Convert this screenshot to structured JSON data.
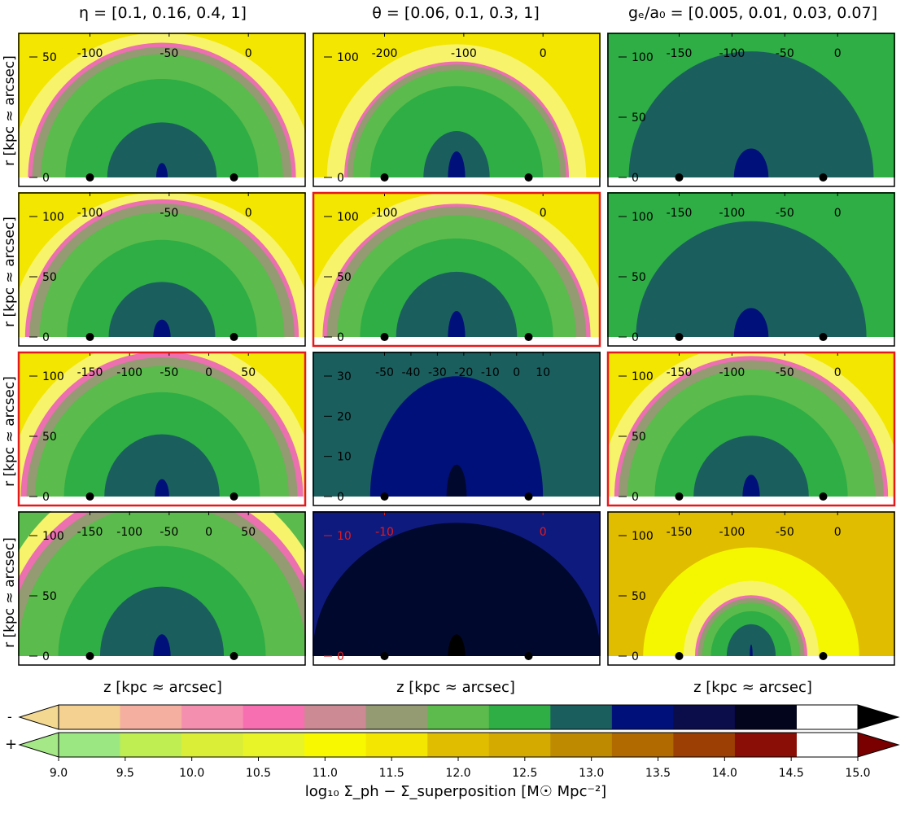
{
  "chart_data": {
    "type": "heatmap",
    "column_titles": [
      "η = [0.1,  0.16,  0.4,  1]",
      "θ = [0.06,  0.1,  0.3,  1]",
      "gₑ/a₀ = [0.005,  0.01,  0.03,  0.07]"
    ],
    "ylabel": "r [kpc ≈ arcsec]",
    "xlabel": "z [kpc ≈ arcsec]",
    "colors": {
      "teal": "#1b5e5e",
      "green": "#2eae45",
      "lightgreen": "#5bbb4c",
      "olive": "#949a72",
      "pink": "#ec6fb0",
      "yellow": "#f3e600",
      "paleyellow": "#f7f36b",
      "gold": "#e1bd00",
      "navy": "#00107a",
      "darknavy": "#00082e",
      "midnavy": "#0f1a7e",
      "lime": "#f5f700",
      "frame_highlight": "#e31a1c"
    },
    "panels": [
      {
        "row": 0,
        "col": 0,
        "xticks": [
          "-100",
          "-50",
          "0"
        ],
        "yticks": [
          "0",
          "50"
        ],
        "highlight": false,
        "bg": "yellow",
        "layers": [
          [
            "paleyellow",
            1.05,
            1.0
          ],
          [
            "pink",
            0.93,
            0.93
          ],
          [
            "olive",
            0.9,
            0.9
          ],
          [
            "lightgreen",
            0.84,
            0.85
          ],
          [
            "green",
            0.67,
            0.68
          ],
          [
            "teal",
            0.38,
            0.38
          ],
          [
            "navy",
            0.04,
            0.1
          ]
        ]
      },
      {
        "row": 0,
        "col": 1,
        "xticks": [
          "-200",
          "-100",
          "0"
        ],
        "yticks": [
          "0",
          "100"
        ],
        "highlight": false,
        "bg": "yellow",
        "layers": [
          [
            "paleyellow",
            0.9,
            0.92
          ],
          [
            "pink",
            0.78,
            0.8
          ],
          [
            "olive",
            0.76,
            0.78
          ],
          [
            "lightgreen",
            0.72,
            0.74
          ],
          [
            "green",
            0.6,
            0.63
          ],
          [
            "teal",
            0.23,
            0.32
          ],
          [
            "navy",
            0.06,
            0.18
          ]
        ]
      },
      {
        "row": 0,
        "col": 2,
        "xticks": [
          "-150",
          "-100",
          "-50",
          "0"
        ],
        "yticks": [
          "0",
          "50",
          "100"
        ],
        "highlight": false,
        "bg": "green",
        "layers": [
          [
            "teal",
            0.85,
            0.87
          ],
          [
            "navy",
            0.12,
            0.2
          ]
        ]
      },
      {
        "row": 1,
        "col": 0,
        "xticks": [
          "-100",
          "-50",
          "0"
        ],
        "yticks": [
          "0",
          "50",
          "100"
        ],
        "highlight": false,
        "bg": "yellow",
        "layers": [
          [
            "paleyellow",
            1.05,
            1.0
          ],
          [
            "pink",
            0.95,
            0.95
          ],
          [
            "olive",
            0.92,
            0.92
          ],
          [
            "lightgreen",
            0.85,
            0.86
          ],
          [
            "green",
            0.66,
            0.67
          ],
          [
            "teal",
            0.37,
            0.38
          ],
          [
            "navy",
            0.06,
            0.12
          ]
        ]
      },
      {
        "row": 1,
        "col": 1,
        "xticks": [
          "-100",
          "0"
        ],
        "yticks": [
          "0",
          "50",
          "100"
        ],
        "highlight": true,
        "bg": "yellow",
        "layers": [
          [
            "paleyellow",
            1.05,
            1.0
          ],
          [
            "pink",
            0.93,
            0.92
          ],
          [
            "olive",
            0.9,
            0.9
          ],
          [
            "lightgreen",
            0.83,
            0.84
          ],
          [
            "green",
            0.67,
            0.68
          ],
          [
            "teal",
            0.42,
            0.45
          ],
          [
            "navy",
            0.06,
            0.18
          ]
        ]
      },
      {
        "row": 1,
        "col": 2,
        "xticks": [
          "-150",
          "-100",
          "-50",
          "0"
        ],
        "yticks": [
          "0",
          "50",
          "100"
        ],
        "highlight": false,
        "bg": "green",
        "layers": [
          [
            "teal",
            0.8,
            0.8
          ],
          [
            "navy",
            0.12,
            0.2
          ]
        ]
      },
      {
        "row": 2,
        "col": 0,
        "xticks": [
          "-150",
          "-100",
          "-50",
          "0",
          "50"
        ],
        "yticks": [
          "0",
          "50",
          "100"
        ],
        "highlight": true,
        "bg": "yellow",
        "layers": [
          [
            "paleyellow",
            1.07,
            1.1
          ],
          [
            "pink",
            0.98,
            1.0
          ],
          [
            "olive",
            0.94,
            0.96
          ],
          [
            "lightgreen",
            0.88,
            0.9
          ],
          [
            "green",
            0.68,
            0.72
          ],
          [
            "teal",
            0.4,
            0.43
          ],
          [
            "navy",
            0.05,
            0.12
          ]
        ]
      },
      {
        "row": 2,
        "col": 1,
        "xticks": [
          "-50",
          "-40",
          "-30",
          "-20",
          "-10",
          "0",
          "10"
        ],
        "yticks": [
          "0",
          "10",
          "20",
          "30"
        ],
        "highlight": false,
        "bg": "teal",
        "layers": [
          [
            "navy",
            0.6,
            0.83
          ],
          [
            "darknavy",
            0.07,
            0.22
          ]
        ]
      },
      {
        "row": 2,
        "col": 2,
        "xticks": [
          "-150",
          "-100",
          "-50",
          "0"
        ],
        "yticks": [
          "0",
          "50",
          "100"
        ],
        "highlight": true,
        "bg": "yellow",
        "layers": [
          [
            "paleyellow",
            1.05,
            1.05
          ],
          [
            "pink",
            0.95,
            0.97
          ],
          [
            "olive",
            0.92,
            0.94
          ],
          [
            "lightgreen",
            0.86,
            0.88
          ],
          [
            "green",
            0.67,
            0.7
          ],
          [
            "teal",
            0.4,
            0.42
          ],
          [
            "navy",
            0.06,
            0.15
          ]
        ]
      },
      {
        "row": 3,
        "col": 0,
        "xticks": [
          "-150",
          "-100",
          "-50",
          "0",
          "50"
        ],
        "yticks": [
          "0",
          "50",
          "100"
        ],
        "highlight": false,
        "bg": "lightgreen",
        "layers": [
          [
            "paleyellow",
            1.2,
            1.3
          ],
          [
            "pink",
            1.12,
            1.18
          ],
          [
            "olive",
            1.08,
            1.12
          ],
          [
            "lightgreen",
            1.0,
            1.05
          ],
          [
            "green",
            0.72,
            0.76
          ],
          [
            "teal",
            0.43,
            0.48
          ],
          [
            "navy",
            0.06,
            0.15
          ]
        ]
      },
      {
        "row": 3,
        "col": 1,
        "xticks": [
          "-10",
          "0"
        ],
        "yticks": [
          "0",
          "10"
        ],
        "highlight": false,
        "red_ticks": true,
        "bg": "midnavy",
        "layers": [
          [
            "darknavy",
            1.0,
            0.92
          ],
          [
            "black",
            0.06,
            0.15
          ]
        ]
      },
      {
        "row": 3,
        "col": 2,
        "xticks": [
          "-150",
          "-100",
          "-50",
          "0"
        ],
        "yticks": [
          "0",
          "50",
          "100"
        ],
        "highlight": false,
        "bg": "gold",
        "layers": [
          [
            "lime",
            0.75,
            0.75
          ],
          [
            "paleyellow",
            0.47,
            0.52
          ],
          [
            "pink",
            0.39,
            0.42
          ],
          [
            "olive",
            0.37,
            0.4
          ],
          [
            "lightgreen",
            0.34,
            0.37
          ],
          [
            "green",
            0.28,
            0.31
          ],
          [
            "teal",
            0.17,
            0.22
          ],
          [
            "navy",
            0.01,
            0.08
          ]
        ]
      }
    ],
    "colorbar": {
      "minus_label": "-",
      "plus_label": "+",
      "minus_colors": [
        "#f3d892",
        "#f4d191",
        "#f5afa0",
        "#f58fb0",
        "#f86fb1",
        "#cc8a94",
        "#949a72",
        "#5cbb4c",
        "#2eae45",
        "#1b5e5e",
        "#00107a",
        "#0b0c4a",
        "#03051c",
        "#000000"
      ],
      "plus_colors": [
        "#a5e887",
        "#9be882",
        "#bfee52",
        "#dbee37",
        "#e9f428",
        "#f8f800",
        "#f3e600",
        "#e1bd00",
        "#d5aa00",
        "#be8a00",
        "#b16a00",
        "#9c3f05",
        "#8a0e05",
        "#7a0000"
      ],
      "tick_labels": [
        "9.0",
        "9.5",
        "10.0",
        "10.5",
        "11.0",
        "11.5",
        "12.0",
        "12.5",
        "13.0",
        "13.5",
        "14.0",
        "14.5",
        "15.0"
      ],
      "label": "log₁₀ Σ_ph − Σ_superposition   [M☉ Mpc⁻²]"
    }
  }
}
